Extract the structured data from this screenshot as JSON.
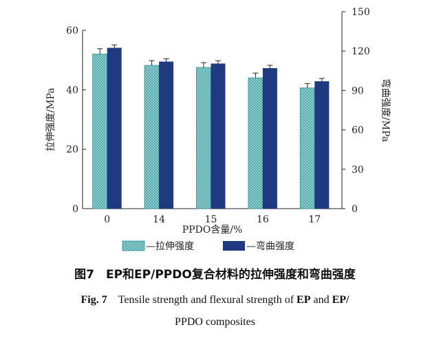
{
  "chart_data": {
    "type": "bar",
    "xlabel": "PPDO含量/%",
    "ylabel_left": "拉伸强度/MPa",
    "ylabel_right": "弯曲强度/MPa",
    "categories": [
      "0",
      "14",
      "15",
      "16",
      "17"
    ],
    "left_axis": {
      "range": [
        0,
        60
      ],
      "ticks": [
        "0",
        "20",
        "40",
        "60"
      ]
    },
    "right_axis": {
      "range": [
        0,
        150
      ],
      "ticks": [
        "0",
        "30",
        "60",
        "90",
        "120",
        "150"
      ]
    },
    "series": [
      {
        "name": "拉伸强度",
        "axis": "left",
        "color": "#3f9fa6",
        "pattern": "hatched",
        "values": [
          52,
          48.2,
          47.5,
          44,
          40.6
        ],
        "errors": [
          1.8,
          1.6,
          1.6,
          1.6,
          1.5
        ]
      },
      {
        "name": "弯曲强度",
        "axis": "right",
        "color": "#1f3a80",
        "pattern": "solid",
        "values": [
          122.5,
          112,
          110.5,
          107,
          97
        ],
        "errors": [
          2.2,
          2.2,
          2.2,
          2.2,
          2.2
        ]
      }
    ],
    "legend": {
      "placement": "bottom",
      "labels": [
        "—拉伸强度",
        "—弯曲强度"
      ]
    },
    "grid": false
  },
  "caption": {
    "zh": "图7　EP和EP/PPDO复合材料的拉伸强度和弯曲强度",
    "en_prefix": "Fig. 7　",
    "en_parts": [
      {
        "text": "Tensile strength and flexural strength of ",
        "bold": false
      },
      {
        "text": "EP",
        "bold": true
      },
      {
        "text": " and ",
        "bold": false
      },
      {
        "text": "EP/",
        "bold": true
      }
    ],
    "en_line2": "PPDO composites"
  }
}
